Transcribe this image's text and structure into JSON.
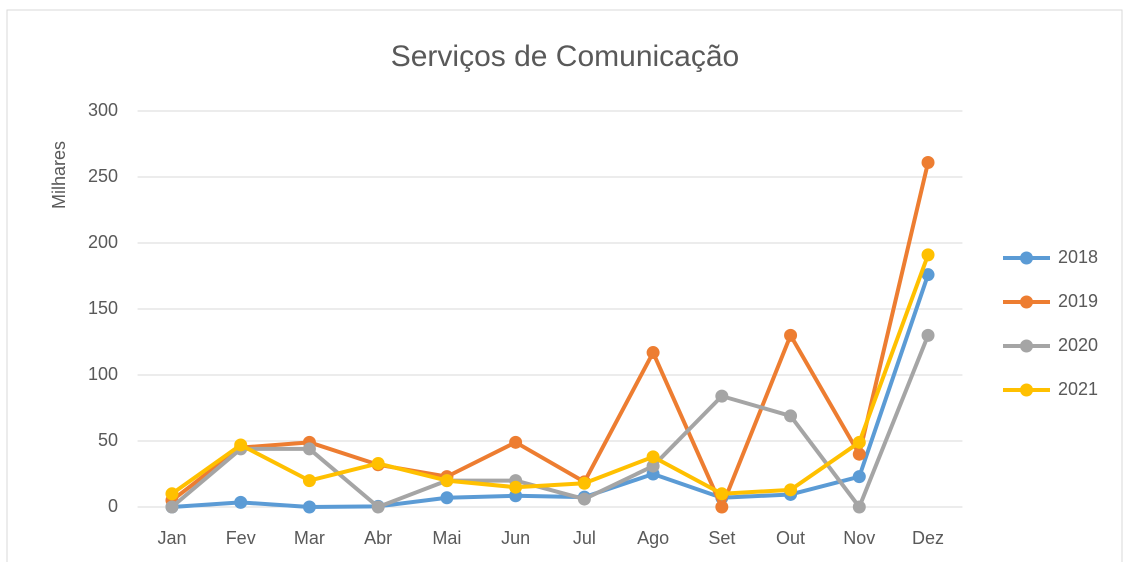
{
  "chart_data": {
    "type": "line",
    "title": "Serviços de Comunicação",
    "y_label": "Milhares",
    "categories": [
      "Jan",
      "Fev",
      "Mar",
      "Abr",
      "Mai",
      "Jun",
      "Jul",
      "Ago",
      "Set",
      "Out",
      "Nov",
      "Dez"
    ],
    "series": [
      {
        "name": "2018",
        "color": "#5b9bd5",
        "values": [
          0,
          3.5,
          0,
          0.5,
          7,
          8.5,
          7.5,
          25,
          7,
          9.5,
          23,
          176
        ]
      },
      {
        "name": "2019",
        "color": "#ed7d31",
        "values": [
          5,
          45,
          49,
          32,
          23,
          49,
          19,
          117,
          0,
          130,
          40,
          261
        ]
      },
      {
        "name": "2020",
        "color": "#a5a5a5",
        "values": [
          0,
          44,
          44,
          0,
          20,
          20,
          6,
          31,
          84,
          69,
          0,
          130
        ]
      },
      {
        "name": "2021",
        "color": "#ffc000",
        "values": [
          10,
          47,
          20,
          33,
          20,
          15,
          18,
          38,
          10,
          13,
          49,
          191
        ]
      }
    ],
    "ylim": [
      0,
      300
    ],
    "yticks": [
      0,
      50,
      100,
      150,
      200,
      250,
      300
    ],
    "grid": true,
    "legend": "right"
  }
}
